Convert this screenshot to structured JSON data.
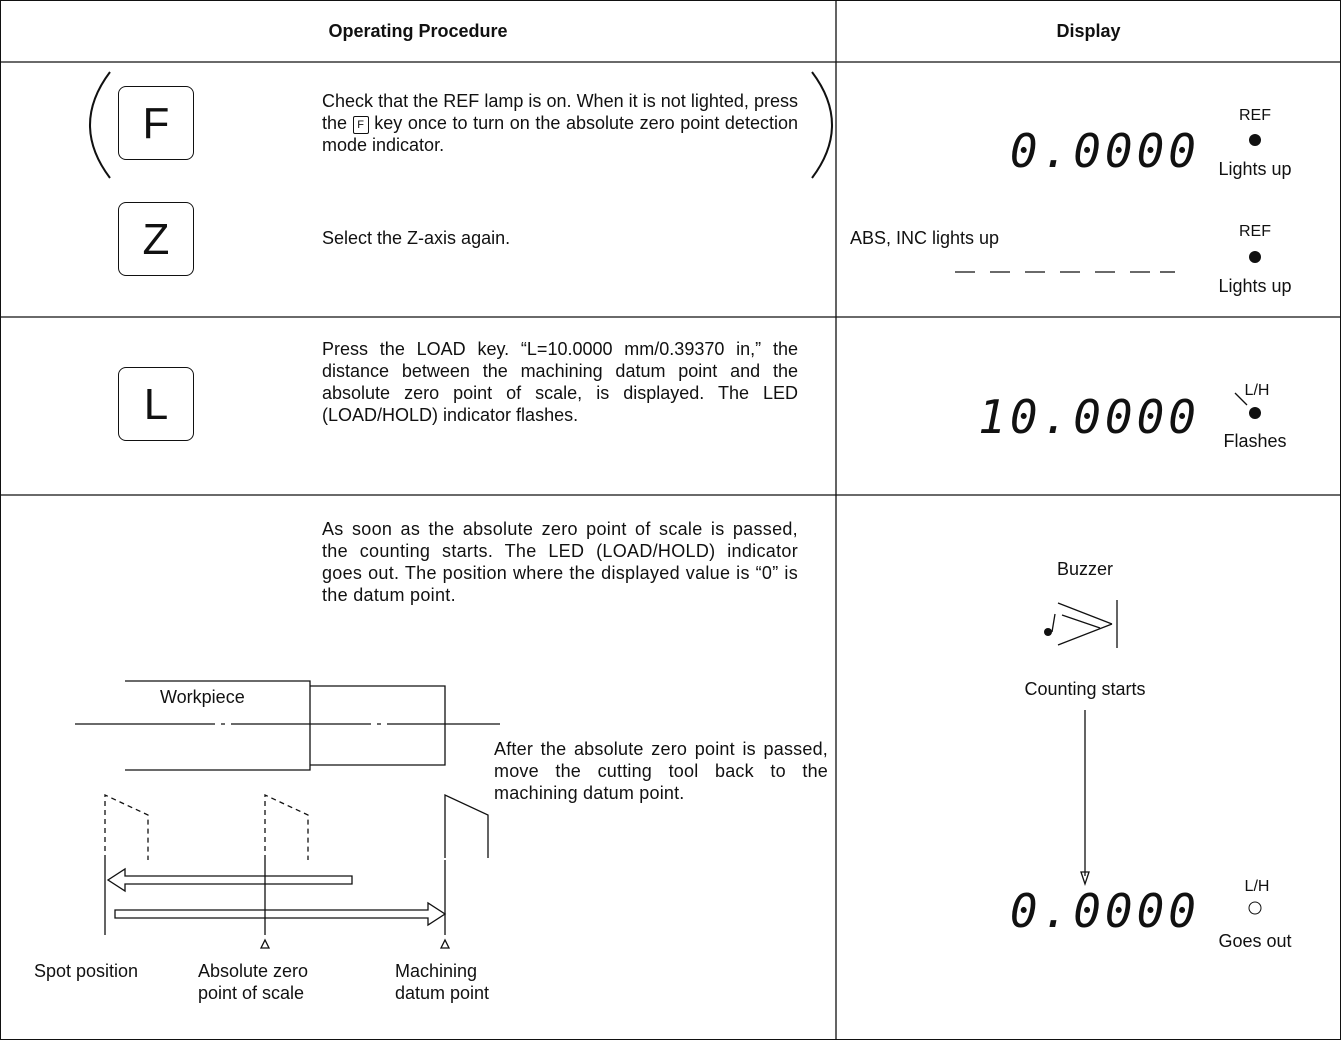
{
  "table": {
    "headers": [
      "Operating Procedure",
      "Display"
    ],
    "rows": [
      {
        "steps": [
          {
            "key": "F",
            "text_before": "Check that the REF lamp is on. When it is not lighted, press the",
            "inline_key": "F",
            "text_after": "key once to turn on the absolute zero point detection mode indicator.",
            "display": "0.0000",
            "lamp": "REF",
            "lamp_state": "Lights up"
          },
          {
            "key": "Z",
            "text": "Select the Z-axis again.",
            "display_note": "ABS, INC lights up",
            "lamp": "REF",
            "lamp_state": "Lights up"
          }
        ]
      },
      {
        "key": "L",
        "text": "Press the LOAD key. “L=10.0000 mm/0.39370 in,” the distance between the machining datum point and the absolute zero point of scale, is displayed. The LED (LOAD/HOLD) indicator flashes.",
        "display": "10.0000",
        "lamp": "L/H",
        "lamp_state": "Flashes"
      },
      {
        "text": "As soon as the absolute zero point of scale is passed, the counting starts. The LED (LOAD/HOLD) indicator goes out. The position where the displayed value is “0” is the datum point.",
        "diagram": {
          "workpiece": "Workpiece",
          "spot": "Spot position",
          "zero": "Absolute zero point of scale",
          "datum": "Machining datum point"
        },
        "note": "After the absolute zero point is passed, move the cutting tool back to the machining datum point.",
        "buzzer": "Buzzer",
        "counting": "Counting starts",
        "display": "0.0000",
        "lamp": "L/H",
        "lamp_state": "Goes out"
      }
    ]
  }
}
